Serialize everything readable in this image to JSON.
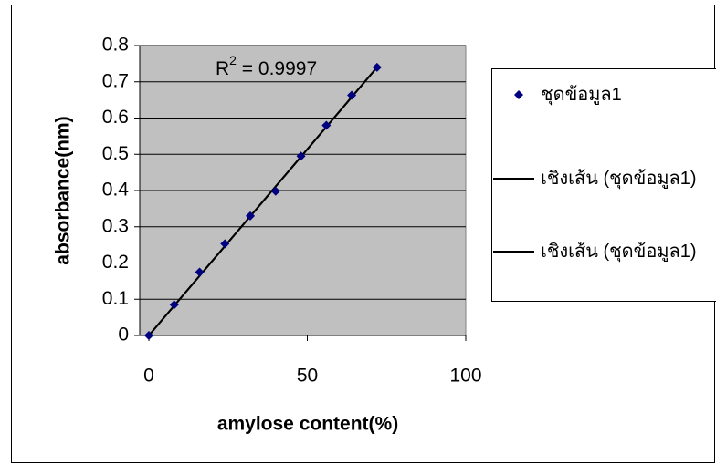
{
  "chart_data": {
    "type": "scatter",
    "x_label": "amylose content(%)",
    "y_label": "absorbance(nm)",
    "annotation": {
      "base": "R",
      "superscript": "2",
      "text": " = 0.9997"
    },
    "xlim": [
      0,
      100
    ],
    "xticks": [
      0,
      50,
      100
    ],
    "ylim": [
      0,
      0.8
    ],
    "yticks": [
      0,
      0.1,
      0.2,
      0.3,
      0.4,
      0.5,
      0.6,
      0.7,
      0.8
    ],
    "grid": true,
    "plot_background": "#c0c0c0",
    "legend": "right",
    "series": [
      {
        "name": "ชุดข้อมูล1",
        "color": "#000080",
        "marker": "diamond",
        "x": [
          0,
          8,
          16,
          24,
          32,
          40,
          48,
          56,
          64,
          72
        ],
        "values": [
          0,
          0.085,
          0.175,
          0.253,
          0.33,
          0.398,
          0.495,
          0.58,
          0.663,
          0.74
        ]
      },
      {
        "name": "เชิงเส้น (ชุดข้อมูล1)",
        "color": "#000000",
        "marker": "line",
        "x": [
          0,
          72
        ],
        "values": [
          0,
          0.74
        ]
      },
      {
        "name": "เชิงเส้น (ชุดข้อมูล1)",
        "color": "#000000",
        "marker": "line",
        "x": [
          0,
          72
        ],
        "values": [
          0,
          0.74
        ]
      }
    ]
  }
}
